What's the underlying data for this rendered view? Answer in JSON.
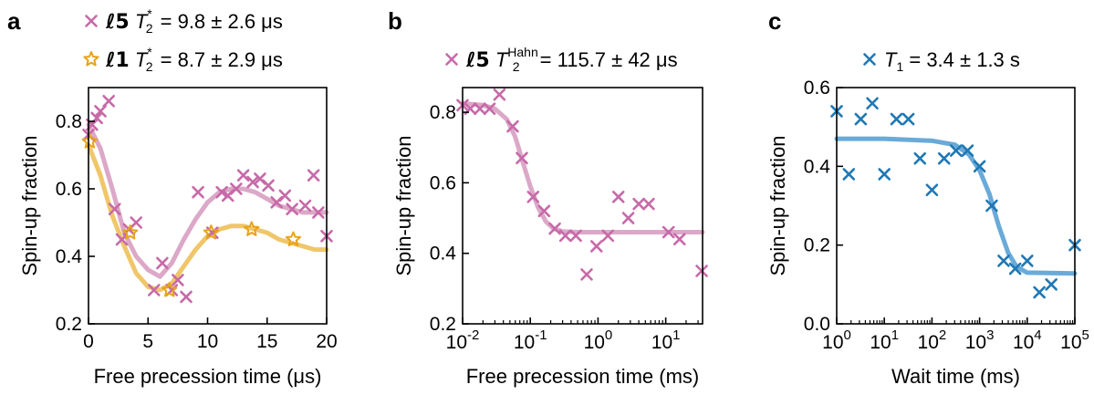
{
  "chart_data": [
    {
      "panel": "a",
      "type": "scatter",
      "xlabel": "Free precession time (μs)",
      "ylabel": "Spin-up fraction",
      "xlim": [
        0,
        20
      ],
      "ylim": [
        0.2,
        0.9
      ],
      "xticks": [
        0,
        5,
        10,
        15,
        20
      ],
      "xtick_labels": [
        "0",
        "5",
        "10",
        "15",
        "20"
      ],
      "yticks": [
        0.2,
        0.4,
        0.6,
        0.8
      ],
      "ytick_labels": [
        "0.2",
        "0.4",
        "0.6",
        "0.8"
      ],
      "legend": [
        {
          "marker": "×",
          "label": "ℓ5",
          "sym": "T",
          "sub": "2",
          "sup": "*",
          "rest": " = 9.8 ± 2.6 μs",
          "color": "#c76aa8"
        },
        {
          "marker": "☆",
          "label": "ℓ1",
          "sym": "T",
          "sub": "2",
          "sup": "*",
          "rest": " = 8.7 ± 2.9 μs",
          "color": "#e8a317"
        }
      ],
      "series": [
        {
          "name": "ℓ5",
          "marker": "x",
          "color": "#c76aa8",
          "fit_color": "#dca8c8",
          "points": [
            [
              0.0,
              0.76
            ],
            [
              0.3,
              0.79
            ],
            [
              0.7,
              0.81
            ],
            [
              1.0,
              0.83
            ],
            [
              1.7,
              0.86
            ],
            [
              2.2,
              0.54
            ],
            [
              2.8,
              0.45
            ],
            [
              3.4,
              0.48
            ],
            [
              4.0,
              0.5
            ],
            [
              5.5,
              0.3
            ],
            [
              6.2,
              0.38
            ],
            [
              7.0,
              0.3
            ],
            [
              7.5,
              0.33
            ],
            [
              8.2,
              0.28
            ],
            [
              9.2,
              0.59
            ],
            [
              10.4,
              0.47
            ],
            [
              11.2,
              0.59
            ],
            [
              11.7,
              0.58
            ],
            [
              12.4,
              0.6
            ],
            [
              13.0,
              0.64
            ],
            [
              13.8,
              0.62
            ],
            [
              14.4,
              0.63
            ],
            [
              15.1,
              0.61
            ],
            [
              15.8,
              0.56
            ],
            [
              16.5,
              0.58
            ],
            [
              17.1,
              0.54
            ],
            [
              18.2,
              0.55
            ],
            [
              18.9,
              0.64
            ],
            [
              19.3,
              0.53
            ],
            [
              20.0,
              0.46
            ]
          ],
          "fit": [
            [
              0.0,
              0.79
            ],
            [
              1.0,
              0.72
            ],
            [
              2.0,
              0.6
            ],
            [
              3.0,
              0.47
            ],
            [
              4.0,
              0.4
            ],
            [
              5.0,
              0.36
            ],
            [
              6.0,
              0.34
            ],
            [
              7.0,
              0.38
            ],
            [
              8.0,
              0.45
            ],
            [
              9.0,
              0.51
            ],
            [
              10.0,
              0.56
            ],
            [
              11.0,
              0.59
            ],
            [
              12.0,
              0.6
            ],
            [
              13.0,
              0.6
            ],
            [
              14.0,
              0.59
            ],
            [
              15.0,
              0.57
            ],
            [
              16.0,
              0.55
            ],
            [
              17.0,
              0.54
            ],
            [
              18.0,
              0.53
            ],
            [
              19.0,
              0.53
            ],
            [
              20.0,
              0.53
            ]
          ]
        },
        {
          "name": "ℓ1",
          "marker": "star",
          "color": "#e8a317",
          "fit_color": "#f0c66a",
          "points": [
            [
              0.1,
              0.74
            ],
            [
              3.5,
              0.47
            ],
            [
              6.8,
              0.3
            ],
            [
              10.3,
              0.47
            ],
            [
              13.7,
              0.48
            ],
            [
              17.2,
              0.45
            ]
          ],
          "fit": [
            [
              0.0,
              0.73
            ],
            [
              1.0,
              0.64
            ],
            [
              2.0,
              0.52
            ],
            [
              3.0,
              0.43
            ],
            [
              4.0,
              0.35
            ],
            [
              5.0,
              0.31
            ],
            [
              6.0,
              0.3
            ],
            [
              7.0,
              0.32
            ],
            [
              8.0,
              0.37
            ],
            [
              9.0,
              0.42
            ],
            [
              10.0,
              0.46
            ],
            [
              11.0,
              0.48
            ],
            [
              12.0,
              0.49
            ],
            [
              13.0,
              0.49
            ],
            [
              14.0,
              0.48
            ],
            [
              15.0,
              0.47
            ],
            [
              16.0,
              0.45
            ],
            [
              17.0,
              0.44
            ],
            [
              18.0,
              0.43
            ],
            [
              19.0,
              0.42
            ],
            [
              20.0,
              0.42
            ]
          ]
        }
      ]
    },
    {
      "panel": "b",
      "type": "scatter",
      "xscale": "log",
      "xlabel": "Free precession time (ms)",
      "ylabel": "Spin-up fraction",
      "xlim": [
        0.01,
        35
      ],
      "ylim": [
        0.2,
        0.87
      ],
      "xticks": [
        0.01,
        0.1,
        1,
        10
      ],
      "xtick_labels": [
        [
          "10",
          "-2"
        ],
        [
          "10",
          "-1"
        ],
        [
          "10",
          "0"
        ],
        [
          "10",
          "1"
        ]
      ],
      "yticks": [
        0.2,
        0.4,
        0.6,
        0.8
      ],
      "ytick_labels": [
        "0.2",
        "0.4",
        "0.6",
        "0.8"
      ],
      "legend": [
        {
          "marker": "×",
          "label": "ℓ5",
          "sym": "T",
          "sub": "2",
          "sup": "Hahn",
          "rest": " = 115.7 ± 42 μs",
          "color": "#c76aa8"
        }
      ],
      "series": [
        {
          "name": "ℓ5",
          "marker": "x",
          "color": "#c76aa8",
          "fit_color": "#dca8c8",
          "points": [
            [
              0.01,
              0.82
            ],
            [
              0.013,
              0.81
            ],
            [
              0.018,
              0.81
            ],
            [
              0.025,
              0.81
            ],
            [
              0.035,
              0.85
            ],
            [
              0.055,
              0.76
            ],
            [
              0.075,
              0.67
            ],
            [
              0.11,
              0.56
            ],
            [
              0.16,
              0.52
            ],
            [
              0.23,
              0.47
            ],
            [
              0.33,
              0.45
            ],
            [
              0.47,
              0.45
            ],
            [
              0.68,
              0.34
            ],
            [
              0.95,
              0.42
            ],
            [
              1.4,
              0.45
            ],
            [
              2.0,
              0.56
            ],
            [
              2.8,
              0.5
            ],
            [
              4.0,
              0.54
            ],
            [
              5.6,
              0.54
            ],
            [
              11,
              0.46
            ],
            [
              16,
              0.44
            ],
            [
              34,
              0.35
            ]
          ],
          "fit": [
            [
              0.01,
              0.825
            ],
            [
              0.02,
              0.82
            ],
            [
              0.03,
              0.81
            ],
            [
              0.045,
              0.78
            ],
            [
              0.06,
              0.73
            ],
            [
              0.08,
              0.65
            ],
            [
              0.1,
              0.59
            ],
            [
              0.13,
              0.53
            ],
            [
              0.17,
              0.49
            ],
            [
              0.22,
              0.47
            ],
            [
              0.3,
              0.462
            ],
            [
              0.5,
              0.46
            ],
            [
              1,
              0.46
            ],
            [
              5,
              0.46
            ],
            [
              35,
              0.46
            ]
          ]
        }
      ]
    },
    {
      "panel": "c",
      "type": "scatter",
      "xscale": "log",
      "xlabel": "Wait time (ms)",
      "ylabel": "Spin-up fraction",
      "xlim": [
        1,
        100000
      ],
      "ylim": [
        0.0,
        0.6
      ],
      "xticks": [
        1,
        10,
        100,
        1000,
        10000,
        100000
      ],
      "xtick_labels": [
        [
          "10",
          "0"
        ],
        [
          "10",
          "1"
        ],
        [
          "10",
          "2"
        ],
        [
          "10",
          "3"
        ],
        [
          "10",
          "4"
        ],
        [
          "10",
          "5"
        ]
      ],
      "yticks": [
        0.0,
        0.2,
        0.4,
        0.6
      ],
      "ytick_labels": [
        "0.0",
        "0.2",
        "0.4",
        "0.6"
      ],
      "legend": [
        {
          "marker": "×",
          "label": "",
          "sym": "T",
          "sub": "1",
          "sup": "",
          "rest": " = 3.4 ± 1.3 s",
          "color": "#1f78b4"
        }
      ],
      "series": [
        {
          "name": "T1",
          "marker": "x",
          "color": "#1f78b4",
          "fit_color": "#6aaad8",
          "points": [
            [
              1,
              0.54
            ],
            [
              1.8,
              0.38
            ],
            [
              3.2,
              0.52
            ],
            [
              5.6,
              0.56
            ],
            [
              10,
              0.38
            ],
            [
              18,
              0.52
            ],
            [
              32,
              0.52
            ],
            [
              56,
              0.42
            ],
            [
              100,
              0.34
            ],
            [
              180,
              0.42
            ],
            [
              320,
              0.44
            ],
            [
              560,
              0.44
            ],
            [
              1000,
              0.4
            ],
            [
              1800,
              0.3
            ],
            [
              3200,
              0.16
            ],
            [
              5600,
              0.14
            ],
            [
              10000,
              0.16
            ],
            [
              18000,
              0.08
            ],
            [
              32000,
              0.1
            ],
            [
              100000,
              0.2
            ]
          ],
          "fit": [
            [
              1,
              0.47
            ],
            [
              10,
              0.47
            ],
            [
              100,
              0.465
            ],
            [
              300,
              0.455
            ],
            [
              600,
              0.43
            ],
            [
              1000,
              0.39
            ],
            [
              1600,
              0.33
            ],
            [
              2500,
              0.25
            ],
            [
              4000,
              0.18
            ],
            [
              6000,
              0.145
            ],
            [
              10000,
              0.13
            ],
            [
              100000,
              0.128
            ]
          ]
        }
      ]
    }
  ]
}
